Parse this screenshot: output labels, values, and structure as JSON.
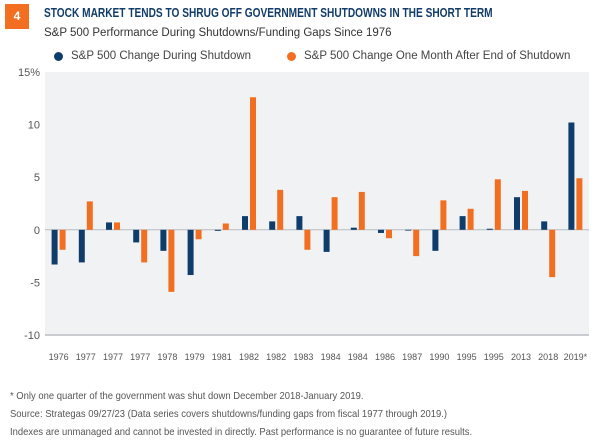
{
  "badge": "4",
  "title": "STOCK MARKET TENDS TO SHRUG OFF GOVERNMENT SHUTDOWNS IN THE SHORT TERM",
  "subtitle": "S&P 500 Performance During Shutdowns/Funding Gaps Since 1976",
  "footnotes": [
    "* Only one quarter of the government was shut down December 2018-January 2019.",
    "Source: Strategas 09/27/23  (Data series covers shutdowns/funding gaps from fiscal 1977 through 2019.)",
    "Indexes are unmanaged and cannot be invested in directly. Past performance is no guarantee of future results."
  ],
  "chart_data": {
    "type": "bar",
    "title": "STOCK MARKET TENDS TO SHRUG OFF GOVERNMENT SHUTDOWNS IN THE SHORT TERM",
    "subtitle": "S&P 500 Performance During Shutdowns/Funding Gaps Since 1976",
    "categories": [
      "1976",
      "1977",
      "1977",
      "1977",
      "1978",
      "1979",
      "1981",
      "1982",
      "1982",
      "1983",
      "1984",
      "1984",
      "1986",
      "1987",
      "1990",
      "1995",
      "1995",
      "2013",
      "2018",
      "2019*"
    ],
    "series": [
      {
        "name": "S&P 500 Change During Shutdown",
        "color": "#0f3d6b",
        "values": [
          -3.3,
          -3.1,
          0.7,
          -1.2,
          -2.0,
          -4.3,
          -0.1,
          1.3,
          0.8,
          1.3,
          -2.1,
          0.2,
          -0.3,
          0.0,
          -2.0,
          1.3,
          0.1,
          3.1,
          0.8,
          10.2
        ]
      },
      {
        "name": "S&P 500 Change One Month After End of Shutdown",
        "color": "#f26f21",
        "values": [
          -1.9,
          2.7,
          0.7,
          -3.1,
          -5.9,
          -0.9,
          0.6,
          12.6,
          3.8,
          -1.9,
          3.1,
          3.6,
          -0.8,
          -2.5,
          2.8,
          2.0,
          4.8,
          3.7,
          -4.5,
          4.9
        ]
      }
    ],
    "ylim": [
      -10,
      15
    ],
    "yticks": [
      -10,
      -5,
      0,
      5,
      10,
      15
    ],
    "ytick_labels": [
      "-10",
      "-5",
      "0",
      "5",
      "10",
      "15%"
    ],
    "grid": false,
    "legend": "top",
    "background": "#f1f2f4"
  }
}
